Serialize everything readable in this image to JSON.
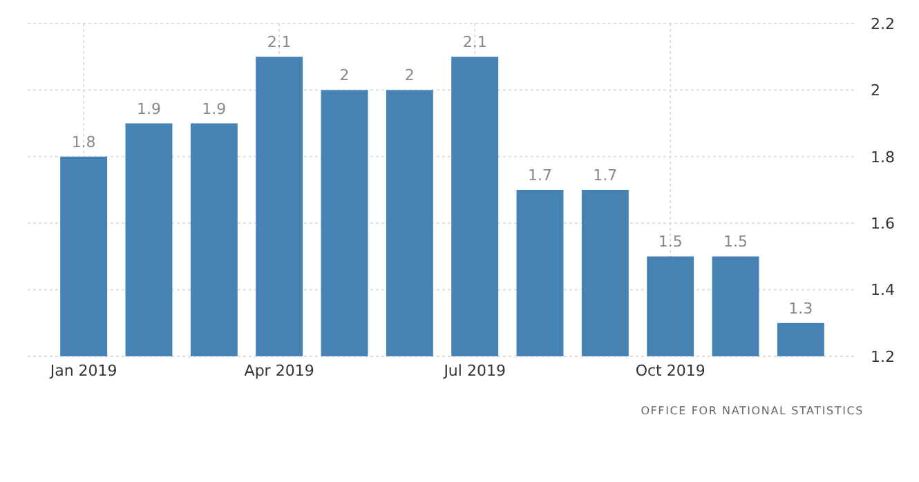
{
  "chart_data": {
    "type": "bar",
    "categories": [
      "Jan 2019",
      null,
      null,
      "Apr 2019",
      null,
      null,
      "Jul 2019",
      null,
      null,
      "Oct 2019",
      null,
      null
    ],
    "values": [
      1.8,
      1.9,
      1.9,
      2.1,
      2,
      2,
      2.1,
      1.7,
      1.7,
      1.5,
      1.5,
      1.3
    ],
    "color": "#4682b4",
    "ylim": [
      1.2,
      2.2
    ],
    "yticks": [
      1.2,
      1.4,
      1.6,
      1.8,
      2,
      2.2
    ],
    "grid": true,
    "data_labels": true,
    "annotations": [
      "OFFICE FOR NATIONAL STATISTICS"
    ]
  }
}
